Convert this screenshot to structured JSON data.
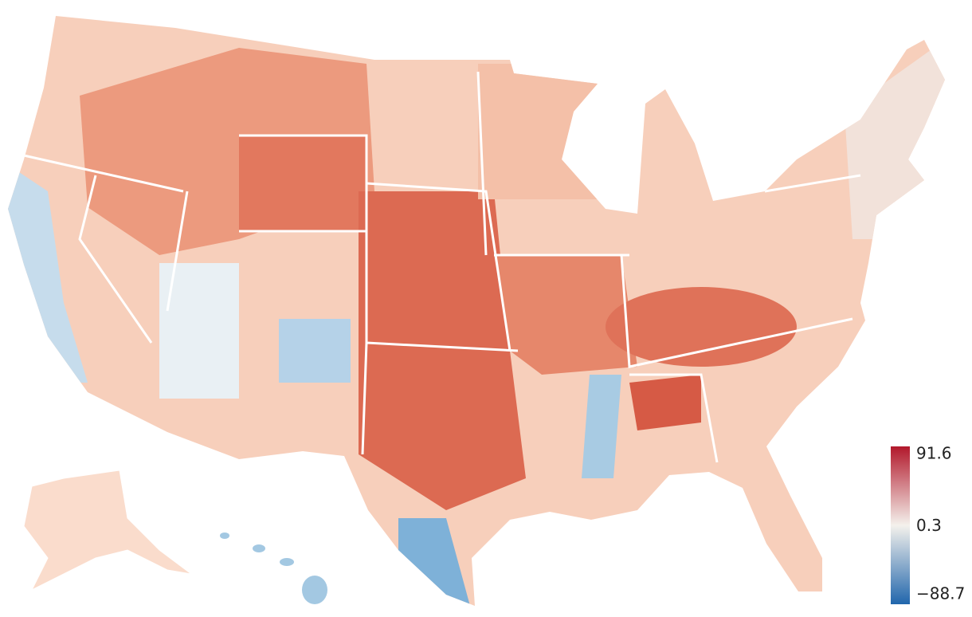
{
  "colorbar": {
    "colors": [
      "#2166ac",
      "#f4f1ec",
      "#b2182b"
    ],
    "lim": [
      -88.7,
      91.6
    ],
    "ticks": [
      91.6,
      0.3,
      {
        "value": -88.7,
        "label": "−88.7"
      }
    ]
  }
}
